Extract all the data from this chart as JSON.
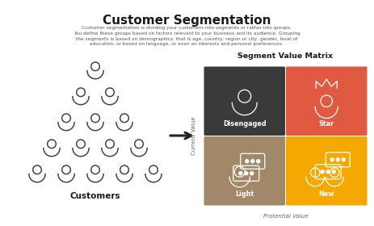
{
  "title": "Customer Segmentation",
  "subtitle_lines": [
    "Customer segmentation is dividing your customers into segments or rather into groups.",
    "You define these groups based on factors relevant to your business and its audience. Grouping",
    "the segments is based on demographics, that is age, country, region or city, gender, level of",
    "education, or based on language, or even on interests and personal preferences."
  ],
  "matrix_title": "Segment Value Matrix",
  "customers_label": "Customers",
  "current_value_label": "Current Value",
  "potential_value_label": "Protential Value",
  "quadrants": [
    {
      "label": "Disengaged",
      "color": "#3a3a3a",
      "text_color": "#ffffff",
      "row": 0,
      "col": 0
    },
    {
      "label": "Star",
      "color": "#e05a42",
      "text_color": "#ffffff",
      "row": 0,
      "col": 1
    },
    {
      "label": "Light",
      "color": "#a08868",
      "text_color": "#ffffff",
      "row": 1,
      "col": 0
    },
    {
      "label": "New",
      "color": "#f5a800",
      "text_color": "#ffffff",
      "row": 1,
      "col": 1
    }
  ],
  "bg_color": "#ffffff",
  "arrow_color": "#222222",
  "pyramid_color": "#444444",
  "title_fontsize": 11,
  "subtitle_fontsize": 4.2,
  "label_fontsize": 5.8,
  "customers_fontsize": 7.5,
  "matrix_title_fontsize": 6.8,
  "axis_label_fontsize": 5.0,
  "icon_lw": 0.9
}
